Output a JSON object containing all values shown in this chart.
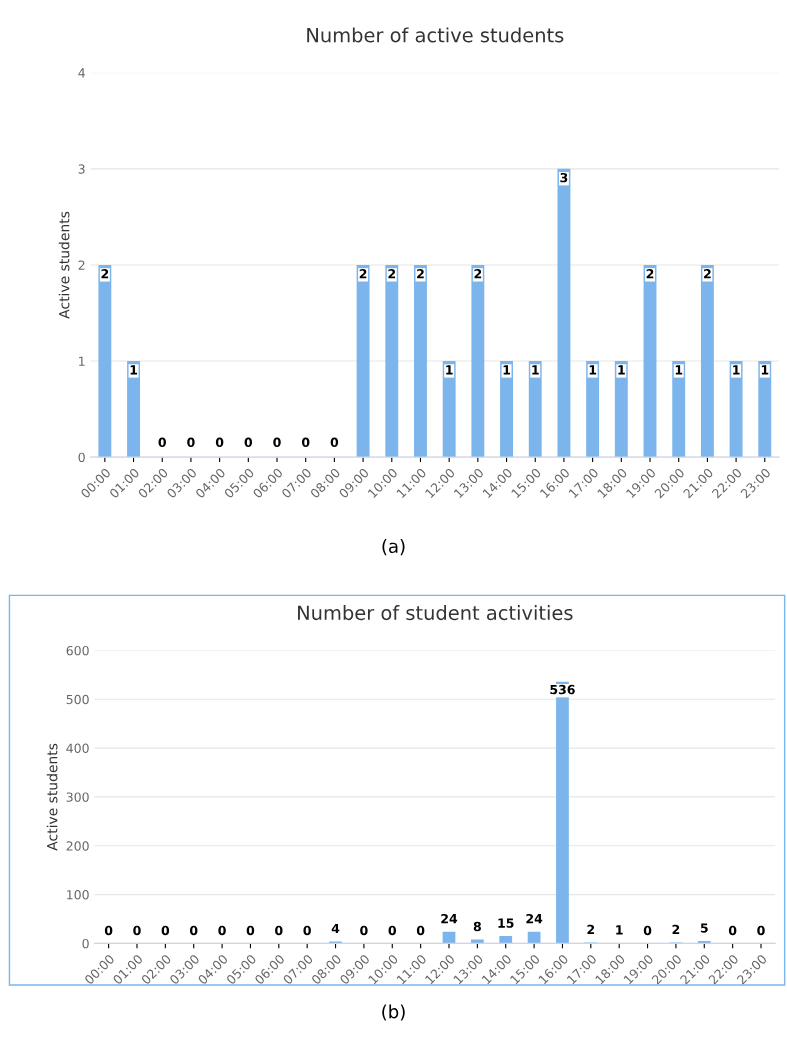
{
  "chart_data": [
    {
      "type": "bar",
      "title": "Number of active students",
      "ylabel": "Active students",
      "categories": [
        "00:00",
        "01:00",
        "02:00",
        "03:00",
        "04:00",
        "05:00",
        "06:00",
        "07:00",
        "08:00",
        "09:00",
        "10:00",
        "11:00",
        "12:00",
        "13:00",
        "14:00",
        "15:00",
        "16:00",
        "17:00",
        "18:00",
        "19:00",
        "20:00",
        "21:00",
        "22:00",
        "23:00"
      ],
      "values": [
        2,
        1,
        0,
        0,
        0,
        0,
        0,
        0,
        0,
        2,
        2,
        2,
        1,
        2,
        1,
        1,
        3,
        1,
        1,
        2,
        1,
        2,
        1,
        1
      ],
      "color": "#7cb5ec",
      "ylim": [
        0,
        4
      ],
      "yticks": [
        0,
        1,
        2,
        3,
        4
      ],
      "grid": "y",
      "data_labels": true,
      "annotations": [
        "(a)"
      ]
    },
    {
      "type": "bar",
      "title": "Number of student activities",
      "ylabel": "Active students",
      "categories": [
        "00:00",
        "01:00",
        "02:00",
        "03:00",
        "04:00",
        "05:00",
        "06:00",
        "07:00",
        "08:00",
        "09:00",
        "10:00",
        "11:00",
        "12:00",
        "13:00",
        "14:00",
        "15:00",
        "16:00",
        "17:00",
        "18:00",
        "19:00",
        "20:00",
        "21:00",
        "22:00",
        "23:00"
      ],
      "values": [
        0,
        0,
        0,
        0,
        0,
        0,
        0,
        0,
        4,
        0,
        0,
        0,
        24,
        8,
        15,
        24,
        536,
        2,
        1,
        0,
        2,
        5,
        0,
        0
      ],
      "color": "#7cb5ec",
      "ylim": [
        0,
        600
      ],
      "yticks": [
        0,
        100,
        200,
        300,
        400,
        500,
        600
      ],
      "grid": "y",
      "data_labels": true,
      "annotations": [
        "(b)"
      ]
    }
  ]
}
